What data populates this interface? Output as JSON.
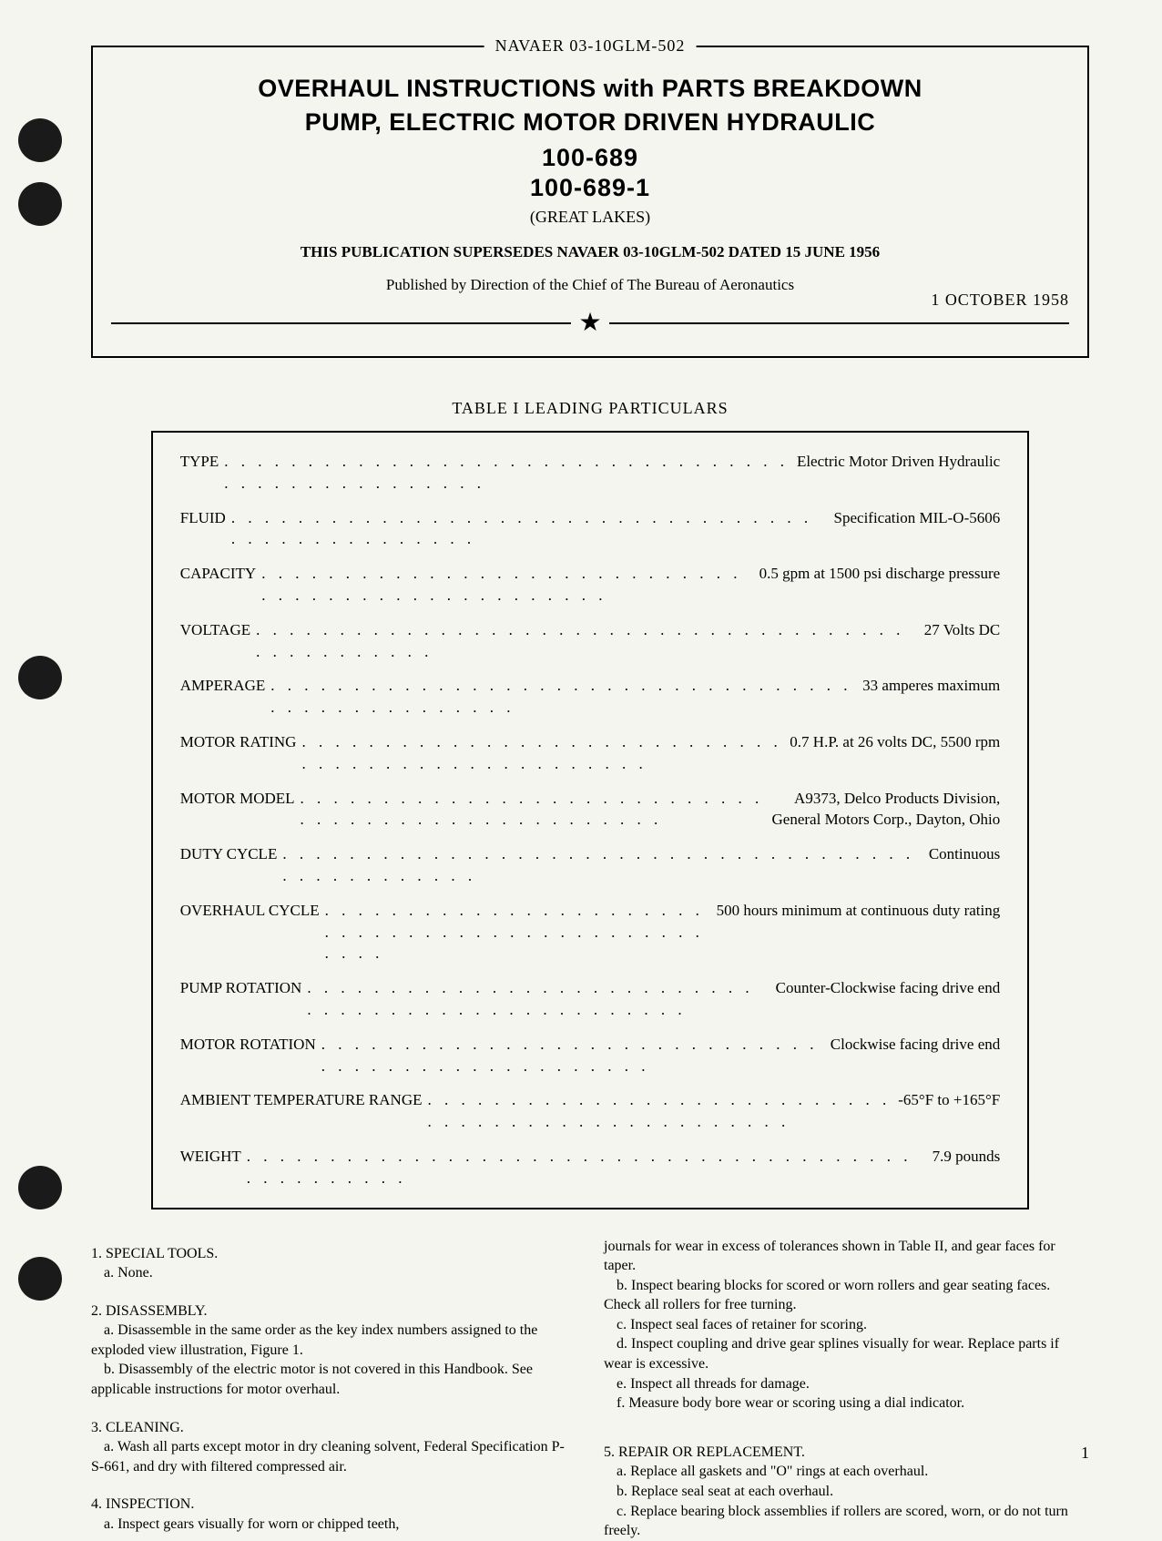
{
  "header": {
    "doc_number": "NAVAER 03-10GLM-502",
    "title_line_1": "OVERHAUL INSTRUCTIONS with PARTS BREAKDOWN",
    "title_line_2": "PUMP, ELECTRIC MOTOR DRIVEN HYDRAULIC",
    "part_number_1": "100-689",
    "part_number_2": "100-689-1",
    "manufacturer": "(GREAT LAKES)",
    "supersedes": "THIS PUBLICATION SUPERSEDES NAVAER 03-10GLM-502 DATED 15 JUNE 1956",
    "published_by": "Published by Direction of the Chief of The Bureau of Aeronautics",
    "date": "1 OCTOBER 1958"
  },
  "table": {
    "title": "TABLE I  LEADING PARTICULARS",
    "rows": [
      {
        "label": "TYPE",
        "value": "Electric Motor Driven Hydraulic"
      },
      {
        "label": "FLUID",
        "value": "Specification MIL-O-5606"
      },
      {
        "label": "CAPACITY",
        "value": "0.5 gpm at 1500 psi discharge pressure"
      },
      {
        "label": "VOLTAGE",
        "value": "27 Volts DC"
      },
      {
        "label": "AMPERAGE",
        "value": "33 amperes maximum"
      },
      {
        "label": "MOTOR RATING",
        "value": "0.7 H.P. at 26 volts DC, 5500 rpm"
      },
      {
        "label": "MOTOR MODEL",
        "value": "A9373, Delco Products Division,",
        "value2": "General Motors Corp., Dayton, Ohio"
      },
      {
        "label": "DUTY CYCLE",
        "value": "Continuous"
      },
      {
        "label": "OVERHAUL CYCLE",
        "value": "500 hours minimum at continuous duty rating"
      },
      {
        "label": "PUMP ROTATION",
        "value": "Counter-Clockwise facing drive end"
      },
      {
        "label": "MOTOR ROTATION",
        "value": "Clockwise facing drive end"
      },
      {
        "label": "AMBIENT TEMPERATURE RANGE",
        "value": "-65°F to +165°F"
      },
      {
        "label": "WEIGHT",
        "value": "7.9 pounds"
      }
    ]
  },
  "body": {
    "col1": [
      {
        "type": "heading",
        "text": "1. SPECIAL TOOLS."
      },
      {
        "type": "para",
        "text": "a. None."
      },
      {
        "type": "spacer"
      },
      {
        "type": "heading",
        "text": "2. DISASSEMBLY."
      },
      {
        "type": "para",
        "text": "a. Disassemble in the same order as the key index numbers assigned to the exploded view illustration, Figure 1."
      },
      {
        "type": "para",
        "text": "b. Disassembly of the electric motor is not covered in this Handbook. See applicable instructions for motor overhaul."
      },
      {
        "type": "spacer"
      },
      {
        "type": "heading",
        "text": "3. CLEANING."
      },
      {
        "type": "para",
        "text": "a. Wash all parts except motor in dry cleaning solvent, Federal Specification P-S-661, and dry with filtered compressed air."
      },
      {
        "type": "spacer"
      },
      {
        "type": "heading",
        "text": "4. INSPECTION."
      },
      {
        "type": "para",
        "text": "a. Inspect gears visually for worn or chipped teeth,"
      }
    ],
    "col2": [
      {
        "type": "cont",
        "text": "journals for wear in excess of tolerances shown in Table II, and gear faces for taper."
      },
      {
        "type": "para",
        "text": "b. Inspect bearing blocks for scored or worn rollers and gear seating faces. Check all rollers for free turning."
      },
      {
        "type": "para",
        "text": "c. Inspect seal faces of retainer for scoring."
      },
      {
        "type": "para",
        "text": "d. Inspect coupling and drive gear splines visually for wear. Replace parts if wear is excessive."
      },
      {
        "type": "para",
        "text": "e. Inspect all threads for damage."
      },
      {
        "type": "para",
        "text": "f. Measure body bore wear or scoring using a dial indicator."
      },
      {
        "type": "spacer"
      },
      {
        "type": "spacer"
      },
      {
        "type": "heading",
        "text": "5. REPAIR OR REPLACEMENT."
      },
      {
        "type": "para",
        "text": "a. Replace all gaskets and \"O\" rings at each overhaul."
      },
      {
        "type": "para",
        "text": "b. Replace seal seat at each overhaul."
      },
      {
        "type": "para",
        "text": "c. Replace bearing block assemblies if rollers are scored, worn, or do not turn freely."
      }
    ]
  },
  "page_number": "1",
  "colors": {
    "background": "#f5f5f0",
    "text": "#000000",
    "border": "#000000"
  }
}
